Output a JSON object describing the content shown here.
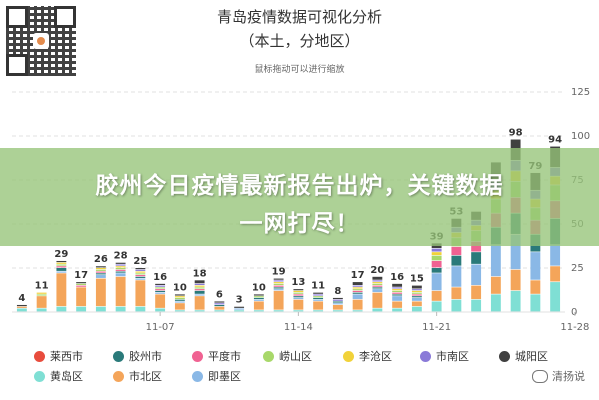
{
  "title_line1": "青岛疫情数据可视化分析",
  "title_line2": "（本土，分地区）",
  "zoom_hint": "鼠标拖动可以进行缩放",
  "banner_line1": "胶州今日疫情最新报告出炉，关键数据",
  "banner_line2": "一网打尽！",
  "watermark": "清扬说",
  "chart_data": {
    "type": "bar",
    "stacked": true,
    "ylim": [
      0,
      125
    ],
    "yticks": [
      0,
      25,
      50,
      75,
      100,
      125
    ],
    "ytick_side": "right",
    "grid": "horizontal dashed",
    "x_tick_labels": [
      {
        "label": "11-07",
        "index": 8
      },
      {
        "label": "11-14",
        "index": 15
      },
      {
        "label": "11-21",
        "index": 22
      },
      {
        "label": "11-28",
        "index": 29
      }
    ],
    "totals": [
      4,
      11,
      29,
      17,
      26,
      28,
      25,
      16,
      10,
      18,
      6,
      3,
      10,
      19,
      13,
      11,
      8,
      17,
      20,
      16,
      15,
      39,
      53,
      57,
      85,
      98,
      79,
      94
    ],
    "total_labels_shown": [
      4,
      11,
      29,
      17,
      26,
      28,
      25,
      16,
      10,
      18,
      6,
      3,
      10,
      19,
      13,
      11,
      8,
      17,
      20,
      16,
      15,
      39,
      53,
      98,
      79,
      94
    ],
    "legend_position": "bottom",
    "series": [
      {
        "name": "黄岛区",
        "color": "#7fdfd4",
        "values": [
          2,
          2,
          3,
          3,
          3,
          3,
          3,
          2,
          1,
          1,
          1,
          1,
          1,
          1,
          1,
          1,
          1,
          1,
          2,
          2,
          3,
          6,
          7,
          7,
          10,
          12,
          10,
          17
        ]
      },
      {
        "name": "市北区",
        "color": "#f4a55a",
        "values": [
          1,
          7,
          19,
          11,
          16,
          17,
          15,
          8,
          4,
          8,
          2,
          0,
          5,
          11,
          6,
          5,
          3,
          6,
          9,
          4,
          3,
          6,
          7,
          8,
          10,
          12,
          8,
          9
        ]
      },
      {
        "name": "即墨区",
        "color": "#8ab8e6",
        "values": [
          0,
          0,
          1,
          0,
          2,
          2,
          1,
          1,
          1,
          1,
          0,
          1,
          1,
          1,
          1,
          1,
          1,
          3,
          2,
          3,
          2,
          10,
          12,
          12,
          18,
          20,
          16,
          12
        ]
      },
      {
        "name": "胶州市",
        "color": "#2a7a7a",
        "values": [
          0,
          0,
          2,
          0,
          1,
          1,
          1,
          1,
          1,
          2,
          1,
          0,
          1,
          1,
          1,
          1,
          1,
          1,
          1,
          1,
          1,
          3,
          6,
          7,
          10,
          12,
          10,
          15
        ]
      },
      {
        "name": "平度市",
        "color": "#f06292",
        "values": [
          0,
          0,
          1,
          1,
          1,
          1,
          1,
          1,
          0,
          1,
          0,
          0,
          0,
          1,
          1,
          0,
          0,
          1,
          1,
          1,
          1,
          4,
          5,
          6,
          8,
          9,
          8,
          10
        ]
      },
      {
        "name": "崂山区",
        "color": "#a8d86a",
        "values": [
          0,
          1,
          1,
          1,
          1,
          1,
          1,
          1,
          1,
          1,
          0,
          0,
          1,
          1,
          1,
          1,
          0,
          1,
          1,
          1,
          1,
          3,
          5,
          6,
          8,
          9,
          7,
          9
        ]
      },
      {
        "name": "李沧区",
        "color": "#f1d23a",
        "values": [
          0,
          1,
          1,
          0,
          1,
          1,
          1,
          0,
          1,
          1,
          0,
          0,
          0,
          1,
          1,
          0,
          0,
          1,
          1,
          1,
          1,
          2,
          3,
          3,
          5,
          6,
          5,
          5
        ]
      },
      {
        "name": "市南区",
        "color": "#8a7ad8",
        "values": [
          0,
          0,
          0,
          0,
          0,
          1,
          1,
          1,
          0,
          1,
          1,
          0,
          0,
          1,
          0,
          1,
          1,
          1,
          1,
          1,
          1,
          2,
          3,
          3,
          5,
          6,
          5,
          5
        ]
      },
      {
        "name": "城阳区",
        "color": "#404040",
        "values": [
          1,
          0,
          1,
          1,
          1,
          1,
          1,
          1,
          1,
          2,
          1,
          1,
          1,
          1,
          1,
          1,
          1,
          2,
          2,
          2,
          2,
          3,
          5,
          5,
          11,
          12,
          10,
          12
        ]
      }
    ]
  },
  "legend": [
    {
      "name": "莱西市",
      "color": "#e84c3d"
    },
    {
      "name": "胶州市",
      "color": "#2a7a7a"
    },
    {
      "name": "平度市",
      "color": "#f06292"
    },
    {
      "name": "崂山区",
      "color": "#a8d86a"
    },
    {
      "name": "李沧区",
      "color": "#f1d23a"
    },
    {
      "name": "市南区",
      "color": "#8a7ad8"
    },
    {
      "name": "城阳区",
      "color": "#404040"
    },
    {
      "name": "黄岛区",
      "color": "#7fdfd4"
    },
    {
      "name": "市北区",
      "color": "#f4a55a"
    },
    {
      "name": "即墨区",
      "color": "#8ab8e6"
    }
  ]
}
